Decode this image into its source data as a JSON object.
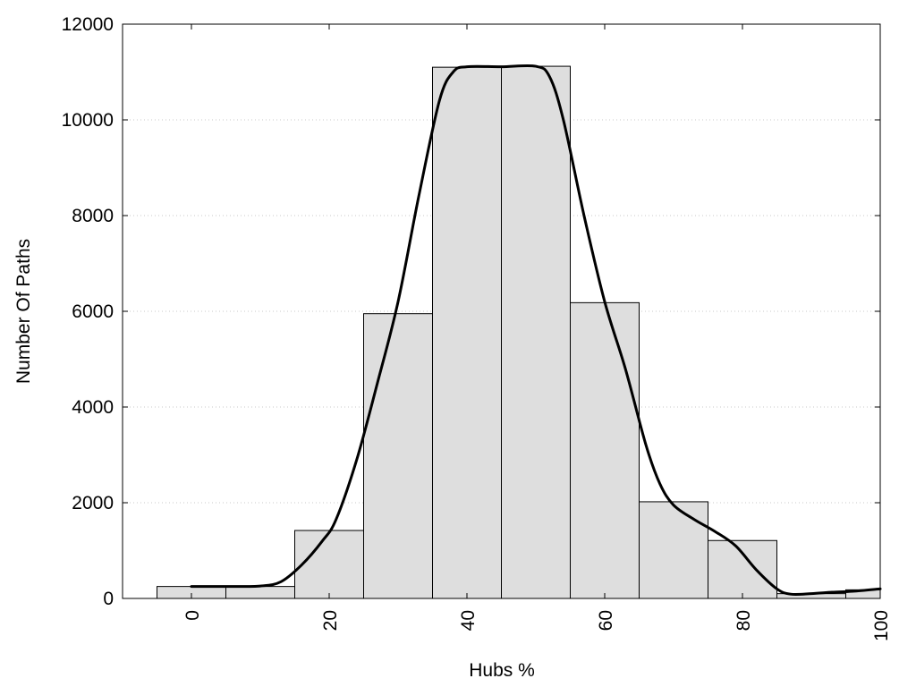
{
  "chart_data": {
    "type": "bar",
    "title": "",
    "xlabel": "Hubs %",
    "ylabel": "Number Of Paths",
    "xlim": [
      -10,
      100
    ],
    "ylim": [
      0,
      12000
    ],
    "x_ticks": [
      0,
      20,
      40,
      60,
      80,
      100
    ],
    "y_ticks": [
      0,
      2000,
      4000,
      6000,
      8000,
      10000,
      12000
    ],
    "bin_width": 10,
    "bars": [
      {
        "x": 0,
        "value": 250
      },
      {
        "x": 10,
        "value": 250
      },
      {
        "x": 20,
        "value": 1420
      },
      {
        "x": 30,
        "value": 5950
      },
      {
        "x": 40,
        "value": 11100
      },
      {
        "x": 50,
        "value": 11120
      },
      {
        "x": 60,
        "value": 6180
      },
      {
        "x": 70,
        "value": 2020
      },
      {
        "x": 80,
        "value": 1210
      },
      {
        "x": 90,
        "value": 100
      },
      {
        "x": 100,
        "value": 180
      }
    ],
    "smooth_curve": {
      "x": [
        0,
        5,
        10,
        13,
        16,
        19,
        21,
        24,
        27,
        30,
        33,
        36,
        38,
        40,
        45,
        50,
        52,
        54,
        57,
        60,
        63,
        66,
        68,
        70,
        73,
        76,
        79,
        82,
        85,
        87,
        90,
        93,
        96,
        100
      ],
      "y": [
        250,
        250,
        260,
        350,
        700,
        1200,
        1650,
        2900,
        4500,
        6200,
        8400,
        10400,
        11000,
        11110,
        11110,
        11120,
        10900,
        10000,
        8000,
        6200,
        4800,
        3200,
        2400,
        1950,
        1650,
        1400,
        1100,
        600,
        200,
        90,
        100,
        130,
        150,
        200
      ]
    },
    "grid": true,
    "colors": {
      "bar_fill": "#dedede",
      "bar_stroke": "#000000",
      "curve": "#000000",
      "grid": "#c8c8c8"
    }
  }
}
